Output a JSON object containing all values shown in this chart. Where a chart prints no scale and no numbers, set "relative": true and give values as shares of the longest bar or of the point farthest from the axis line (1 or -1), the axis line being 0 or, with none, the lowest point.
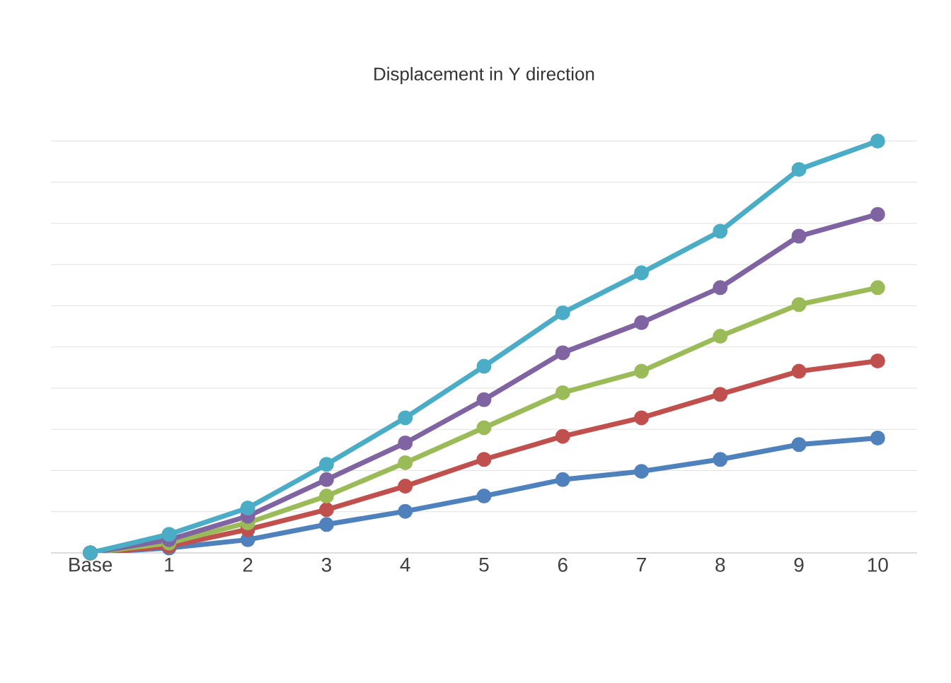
{
  "chart_data": {
    "type": "line",
    "title": "Displacement in Y direction",
    "relative": true,
    "grid": "y",
    "marker": "circle",
    "line_style": "solid",
    "categories": [
      "Base",
      "1",
      "2",
      "3",
      "4",
      "5",
      "6",
      "7",
      "8",
      "9",
      "10"
    ],
    "series": [
      {
        "color": "#4f81bd",
        "values": [
          0,
          0.012,
          0.032,
          0.069,
          0.101,
          0.138,
          0.178,
          0.198,
          0.227,
          0.263,
          0.279
        ]
      },
      {
        "color": "#c0504d",
        "values": [
          0,
          0.016,
          0.057,
          0.105,
          0.162,
          0.227,
          0.283,
          0.328,
          0.385,
          0.441,
          0.466
        ]
      },
      {
        "color": "#9bbb59",
        "values": [
          0,
          0.024,
          0.073,
          0.138,
          0.219,
          0.304,
          0.389,
          0.441,
          0.526,
          0.603,
          0.644
        ]
      },
      {
        "color": "#8064a2",
        "values": [
          0,
          0.032,
          0.089,
          0.178,
          0.267,
          0.372,
          0.486,
          0.559,
          0.644,
          0.769,
          0.822
        ]
      },
      {
        "color": "#4bacc6",
        "values": [
          0,
          0.045,
          0.109,
          0.215,
          0.328,
          0.453,
          0.583,
          0.68,
          0.781,
          0.931,
          1
        ]
      }
    ]
  }
}
